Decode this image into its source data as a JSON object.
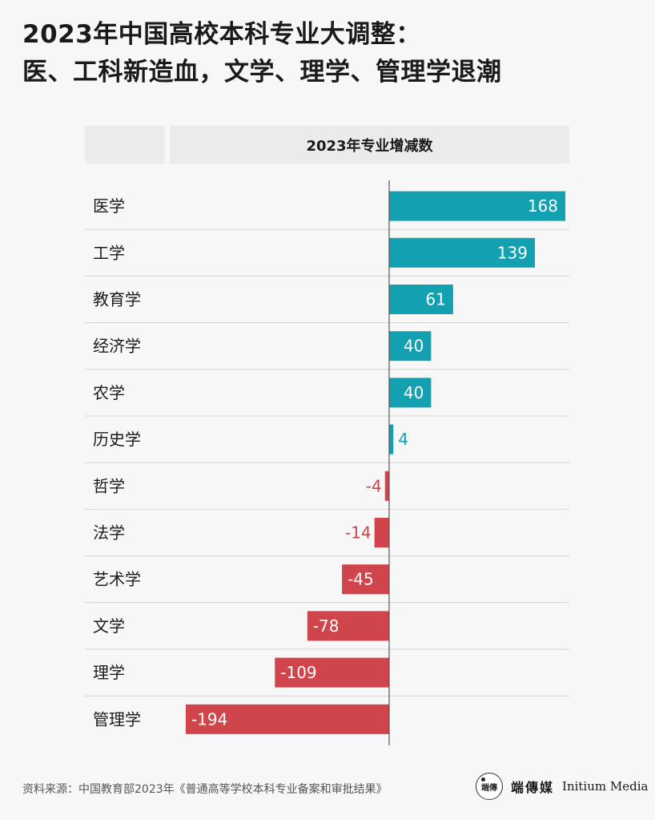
{
  "title": {
    "line1": "2023年中国高校本科专业大调整：",
    "line2": "医、工科新造血，文学、理学、管理学退潮"
  },
  "colors": {
    "positive": "#13a0b1",
    "negative": "#d0454b"
  },
  "chart_data": {
    "type": "bar",
    "orientation": "horizontal",
    "title": "2023年专业增减数",
    "categories": [
      "医学",
      "工学",
      "教育学",
      "经济学",
      "农学",
      "历史学",
      "哲学",
      "法学",
      "艺术学",
      "文学",
      "理学",
      "管理学"
    ],
    "values": [
      168,
      139,
      61,
      40,
      40,
      4,
      -4,
      -14,
      -45,
      -78,
      -109,
      -194
    ],
    "value_labels": [
      "168",
      "139",
      "61",
      "40",
      "40",
      "4",
      "-4",
      "-14",
      "-45",
      "-78",
      "-109",
      "-194"
    ],
    "xlim": [
      -194,
      168
    ],
    "grid": false
  },
  "source": "资料来源：中国教育部2023年《普通高等学校本科专业备案和审批结果》",
  "logo": {
    "mark": "端傳",
    "cn": "端傳媒",
    "en": "Initium Media"
  }
}
